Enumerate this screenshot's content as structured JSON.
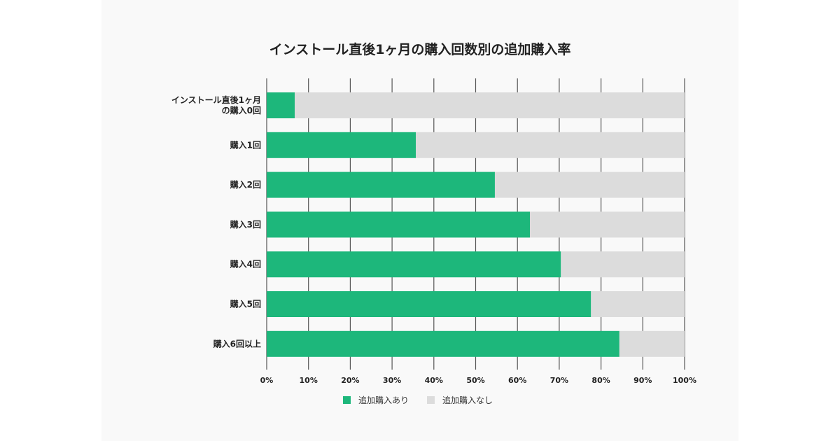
{
  "chart_data": {
    "type": "bar",
    "stacked": true,
    "orientation": "horizontal",
    "title": "インストール直後1ヶ月の購入回数別の追加購入率",
    "categories": [
      [
        "インストール直後1ヶ月",
        "の購入0回"
      ],
      [
        "購入1回"
      ],
      [
        "購入2回"
      ],
      [
        "購入3回"
      ],
      [
        "購入4回"
      ],
      [
        "購入5回"
      ],
      [
        "購入6回以上"
      ]
    ],
    "series": [
      {
        "name": "追加購入あり",
        "color": "#1db77b",
        "values": [
          6.7,
          35.7,
          54.6,
          63.0,
          70.4,
          77.6,
          84.4
        ]
      },
      {
        "name": "追加購入なし",
        "color": "#dcdcdc",
        "values": [
          93.3,
          64.3,
          45.4,
          37.0,
          29.6,
          22.4,
          15.6
        ]
      }
    ],
    "xlim": [
      0,
      100
    ],
    "xticks": [
      "0%",
      "10%",
      "20%",
      "30%",
      "40%",
      "50%",
      "60%",
      "70%",
      "80%",
      "90%",
      "100%"
    ],
    "grid": true,
    "legend": "bottom"
  }
}
